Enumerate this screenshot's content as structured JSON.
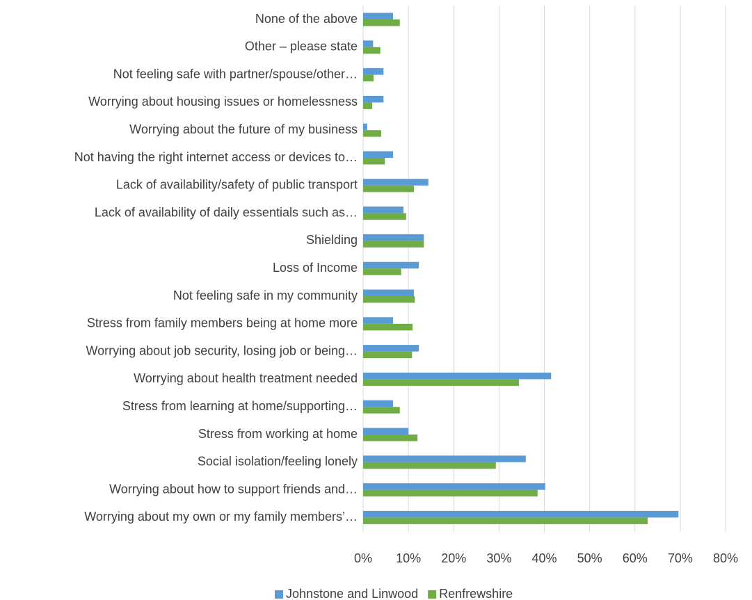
{
  "chart_data": {
    "type": "bar",
    "orientation": "horizontal",
    "categories": [
      "None of the above",
      "Other – please state",
      "Not feeling safe with partner/spouse/other…",
      "Worrying about housing issues or homelessness",
      "Worrying about the future of my business",
      "Not having the right internet access or devices to…",
      "Lack of availability/safety of public transport",
      "Lack of availability of daily essentials such as…",
      "Shielding",
      "Loss of Income",
      "Not feeling safe in my community",
      "Stress from family members being at home more",
      "Worrying about job security, losing job or being…",
      "Worrying about health treatment needed",
      "Stress from learning at home/supporting…",
      "Stress from working at home",
      "Social isolation/feeling lonely",
      "Worrying about how to support friends and…",
      "Worrying about my own or my family members’…"
    ],
    "series": [
      {
        "name": "Johnstone and Linwood",
        "color": "#5b9bd5",
        "values": [
          6.6,
          2.2,
          4.5,
          4.5,
          0.9,
          6.6,
          14.4,
          8.9,
          13.4,
          12.3,
          11.2,
          6.6,
          12.3,
          41.5,
          6.6,
          10.0,
          35.9,
          40.2,
          69.6
        ]
      },
      {
        "name": "Renfrewshire",
        "color": "#70ad47",
        "values": [
          8.1,
          3.8,
          2.3,
          2.0,
          4.0,
          4.8,
          11.2,
          9.5,
          13.4,
          8.4,
          11.4,
          10.9,
          10.8,
          34.4,
          8.1,
          12.0,
          29.3,
          38.5,
          62.8
        ]
      }
    ],
    "xlim": [
      0,
      80
    ],
    "xticks": [
      {
        "value": 0,
        "label": "0%"
      },
      {
        "value": 10,
        "label": "10%"
      },
      {
        "value": 20,
        "label": "20%"
      },
      {
        "value": 30,
        "label": "30%"
      },
      {
        "value": 40,
        "label": "40%"
      },
      {
        "value": 50,
        "label": "50%"
      },
      {
        "value": 60,
        "label": "60%"
      },
      {
        "value": 70,
        "label": "70%"
      },
      {
        "value": 80,
        "label": "80%"
      }
    ],
    "grid": true,
    "legend": "bottom"
  }
}
